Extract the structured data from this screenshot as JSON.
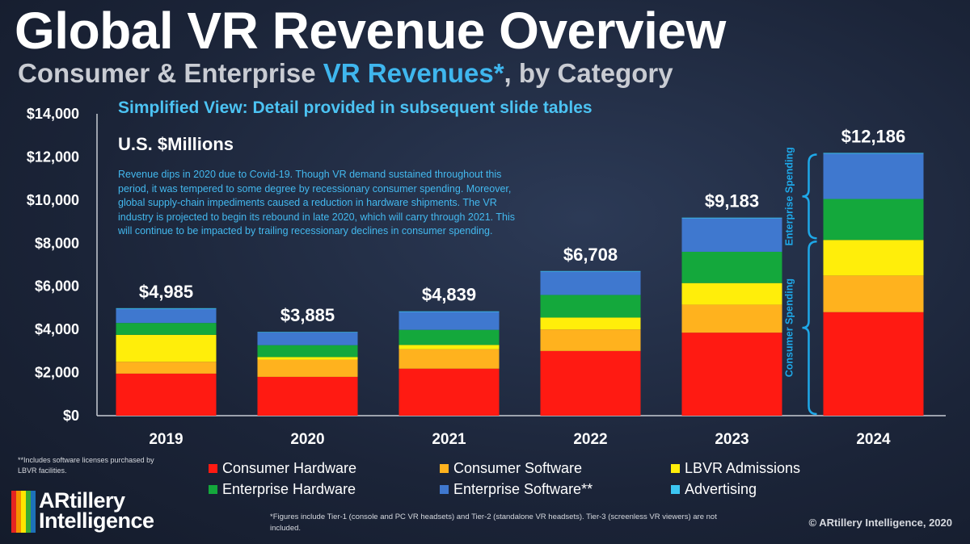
{
  "header": {
    "title": "Global VR Revenue Overview",
    "subtitle_pre": "Consumer & Enterprise ",
    "subtitle_hl": "VR Revenues*",
    "subtitle_post": ", by Category"
  },
  "simplified_view": "Simplified View: Detail provided in subsequent slide tables",
  "units": "U.S. $Millions",
  "note": "Revenue dips in 2020 due to Covid-19. Though VR demand sustained throughout this period, it was tempered to some degree by recessionary consumer spending. Moreover, global supply-chain impediments caused a reduction in hardware shipments. The VR industry is projected to begin its rebound in late 2020, which will carry through 2021. This will continue to be impacted by trailing recessionary declines in consumer spending.",
  "footnote_software": "**Includes software licenses purchased by LBVR facilities.",
  "footnote_figures": "*Figures include Tier-1 (console and PC VR headsets) and Tier-2 (standalone VR headsets). Tier-3 (screenless VR viewers) are not included.",
  "copyright": "© ARtillery Intelligence, 2020",
  "logo": {
    "line1": "ARtillery",
    "line2": "Intelligence"
  },
  "brackets": {
    "consumer": "Consumer Spending",
    "enterprise": "Enterprise Spending"
  },
  "colors": {
    "consumer_hardware": "#ff1a12",
    "consumer_software": "#ffb21e",
    "lbvr_admissions": "#ffee0a",
    "enterprise_hardware": "#14a83c",
    "enterprise_software": "#3f78cf",
    "advertising": "#3cc6f2",
    "bracket": "#1ea8e8"
  },
  "chart_data": {
    "type": "bar",
    "stacked": true,
    "title": "Global VR Revenue Overview",
    "ylabel": "U.S. $Millions",
    "categories": [
      "2019",
      "2020",
      "2021",
      "2022",
      "2023",
      "2024"
    ],
    "ylim": [
      0,
      14000
    ],
    "yticks": [
      0,
      2000,
      4000,
      6000,
      8000,
      10000,
      12000,
      14000
    ],
    "ytick_labels": [
      "$0",
      "$2,000",
      "$4,000",
      "$6,000",
      "$8,000",
      "$10,000",
      "$12,000",
      "$14,000"
    ],
    "totals": [
      4985,
      3885,
      4839,
      6708,
      9183,
      12186
    ],
    "total_labels": [
      "$4,985",
      "$3,885",
      "$4,839",
      "$6,708",
      "$9,183",
      "$12,186"
    ],
    "series": [
      {
        "name": "Consumer Hardware",
        "color": "#ff1a12",
        "values": [
          1950,
          1800,
          2180,
          3000,
          3850,
          4800
        ]
      },
      {
        "name": "Consumer Software",
        "color": "#ffb21e",
        "values": [
          550,
          800,
          900,
          1000,
          1300,
          1700
        ]
      },
      {
        "name": "LBVR Admissions",
        "color": "#ffee0a",
        "values": [
          1250,
          120,
          200,
          550,
          1000,
          1650
        ]
      },
      {
        "name": "Enterprise Hardware",
        "color": "#14a83c",
        "values": [
          550,
          550,
          700,
          1050,
          1450,
          1900
        ]
      },
      {
        "name": "Enterprise Software**",
        "color": "#3f78cf",
        "values": [
          650,
          590,
          830,
          1080,
          1550,
          2100
        ]
      },
      {
        "name": "Advertising",
        "color": "#3cc6f2",
        "values": [
          35,
          25,
          29,
          28,
          33,
          36
        ]
      }
    ],
    "legend": [
      {
        "label": "Consumer Hardware",
        "color": "#ff1a12"
      },
      {
        "label": "Consumer Software",
        "color": "#ffb21e"
      },
      {
        "label": "LBVR Admissions",
        "color": "#ffee0a"
      },
      {
        "label": "Enterprise Hardware",
        "color": "#14a83c"
      },
      {
        "label": "Enterprise Software**",
        "color": "#3f78cf"
      },
      {
        "label": "Advertising",
        "color": "#3cc6f2"
      }
    ]
  }
}
